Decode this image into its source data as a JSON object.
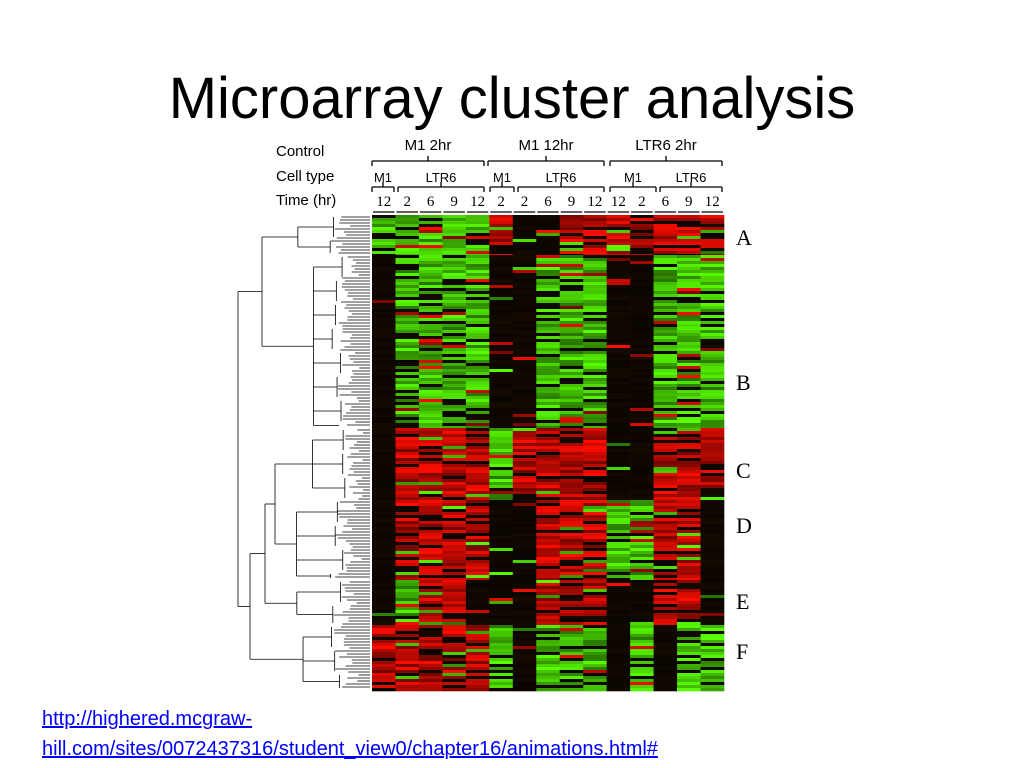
{
  "title": "Microarray cluster analysis",
  "figure": {
    "row_labels": [
      "Control",
      "Cell type",
      "Time (hr)"
    ],
    "controls": [
      "M1 2hr",
      "M1 12hr",
      "LTR6 2hr"
    ],
    "cell_types": [
      "M1",
      "LTR6",
      "M1",
      "LTR6",
      "M1",
      "LTR6"
    ],
    "times": [
      "12",
      "2",
      "6",
      "9",
      "12",
      "2",
      "2",
      "6",
      "9",
      "12",
      "12",
      "2",
      "6",
      "9",
      "12"
    ],
    "clusters": [
      "A",
      "B",
      "C",
      "D",
      "E",
      "F"
    ]
  },
  "link": {
    "lines": [
      "http://highered.mcgraw-",
      "hill.com/sites/0072437316/student_view0/chapter16/animations.html#"
    ]
  }
}
